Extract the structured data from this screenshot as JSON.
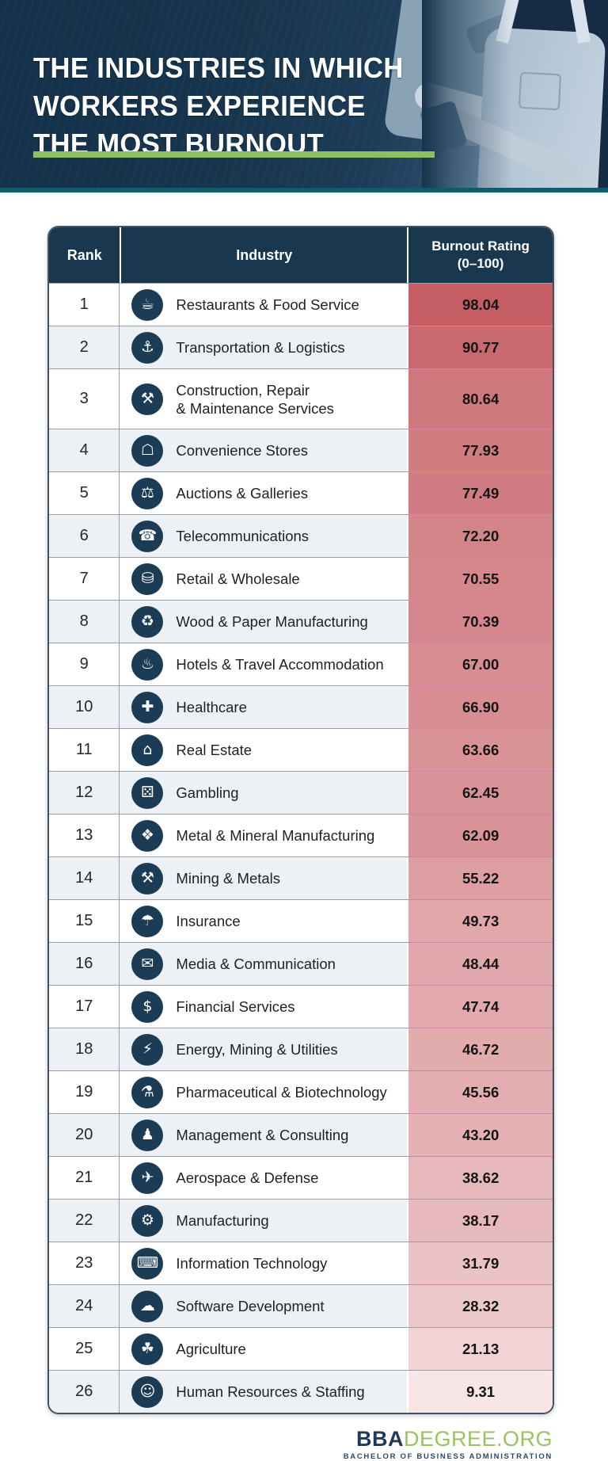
{
  "header": {
    "title_line1": "THE INDUSTRIES IN WHICH",
    "title_line2": "WORKERS EXPERIENCE",
    "title_line3": "THE MOST BURNOUT",
    "accent_bar_color": "#8dc05e",
    "banner_color": "#16334c",
    "strip_color": "#0e5b73",
    "photo_name": "worker-in-denim-overalls-using-equipment"
  },
  "table": {
    "header_bg": "#19384f",
    "columns": [
      "Rank",
      "Industry",
      "Burnout Rating\n(0–100)"
    ],
    "rows": [
      {
        "rank": "1",
        "industry": "Restaurants & Food Service",
        "icon": "food-service-cloche-icon",
        "glyph": "☕",
        "value": "98.04",
        "color": "#c55d64",
        "tall": false
      },
      {
        "rank": "2",
        "industry": "Transportation & Logistics",
        "icon": "delivery-truck-icon",
        "glyph": "⚓",
        "value": "90.77",
        "color": "#c9686f",
        "tall": false
      },
      {
        "rank": "3",
        "industry": "Construction, Repair\n& Maintenance Services",
        "icon": "construction-tools-icon",
        "glyph": "⚒",
        "value": "80.64",
        "color": "#cf787e",
        "tall": true
      },
      {
        "rank": "4",
        "industry": "Convenience Stores",
        "icon": "storefront-icon",
        "glyph": "☖",
        "value": "77.93",
        "color": "#d07c81",
        "tall": false
      },
      {
        "rank": "5",
        "industry": "Auctions & Galleries",
        "icon": "auction-bid-icon",
        "glyph": "⚖",
        "value": "77.49",
        "color": "#d17c82",
        "tall": false
      },
      {
        "rank": "6",
        "industry": "Telecommunications",
        "icon": "antenna-icon",
        "glyph": "☎",
        "value": "72.20",
        "color": "#d4858a",
        "tall": false
      },
      {
        "rank": "7",
        "industry": "Retail & Wholesale",
        "icon": "shopping-cart-icon",
        "glyph": "⛁",
        "value": "70.55",
        "color": "#d5878c",
        "tall": false
      },
      {
        "rank": "8",
        "industry": "Wood & Paper Manufacturing",
        "icon": "paper-rolls-icon",
        "glyph": "♻",
        "value": "70.39",
        "color": "#d5878d",
        "tall": false
      },
      {
        "rank": "9",
        "industry": "Hotels & Travel Accommodation",
        "icon": "service-bell-icon",
        "glyph": "♨",
        "value": "67.00",
        "color": "#d78d92",
        "tall": false
      },
      {
        "rank": "10",
        "industry": "Healthcare",
        "icon": "heart-care-icon",
        "glyph": "✚",
        "value": "66.90",
        "color": "#d78d92",
        "tall": false
      },
      {
        "rank": "11",
        "industry": "Real Estate",
        "icon": "house-hand-icon",
        "glyph": "⌂",
        "value": "63.66",
        "color": "#d99296",
        "tall": false
      },
      {
        "rank": "12",
        "industry": "Gambling",
        "icon": "dice-icon",
        "glyph": "⚄",
        "value": "62.45",
        "color": "#d99398",
        "tall": false
      },
      {
        "rank": "13",
        "industry": "Metal & Mineral Manufacturing",
        "icon": "crystal-icon",
        "glyph": "❖",
        "value": "62.09",
        "color": "#da9499",
        "tall": false
      },
      {
        "rank": "14",
        "industry": "Mining & Metals",
        "icon": "pickaxe-icon",
        "glyph": "⚒",
        "value": "55.22",
        "color": "#de9fa3",
        "tall": false
      },
      {
        "rank": "15",
        "industry": "Insurance",
        "icon": "insurance-shield-icon",
        "glyph": "☂",
        "value": "49.73",
        "color": "#e1a7ab",
        "tall": false
      },
      {
        "rank": "16",
        "industry": "Media & Communication",
        "icon": "megaphone-icon",
        "glyph": "✉",
        "value": "48.44",
        "color": "#e1a9ad",
        "tall": false
      },
      {
        "rank": "17",
        "industry": "Financial Services",
        "icon": "money-stack-icon",
        "glyph": "$",
        "value": "47.74",
        "color": "#e2aaae",
        "tall": false
      },
      {
        "rank": "18",
        "industry": "Energy, Mining & Utilities",
        "icon": "energy-bolt-icon",
        "glyph": "⚡",
        "value": "46.72",
        "color": "#e2acaf",
        "tall": false
      },
      {
        "rank": "19",
        "industry": "Pharmaceutical & Biotechnology",
        "icon": "pills-icon",
        "glyph": "⚗",
        "value": "45.56",
        "color": "#e3adb1",
        "tall": false
      },
      {
        "rank": "20",
        "industry": "Management & Consulting",
        "icon": "team-icon",
        "glyph": "♟",
        "value": "43.20",
        "color": "#e4b1b4",
        "tall": false
      },
      {
        "rank": "21",
        "industry": "Aerospace & Defense",
        "icon": "satellite-icon",
        "glyph": "✈",
        "value": "38.62",
        "color": "#e7b8bb",
        "tall": false
      },
      {
        "rank": "22",
        "industry": "Manufacturing",
        "icon": "gears-icon",
        "glyph": "⚙",
        "value": "38.17",
        "color": "#e7b9bc",
        "tall": false
      },
      {
        "rank": "23",
        "industry": "Information Technology",
        "icon": "computer-code-icon",
        "glyph": "⌨",
        "value": "31.79",
        "color": "#ebc2c5",
        "tall": false
      },
      {
        "rank": "24",
        "industry": "Software Development",
        "icon": "cloud-code-icon",
        "glyph": "☁",
        "value": "28.32",
        "color": "#edc8ca",
        "tall": false
      },
      {
        "rank": "25",
        "industry": "Agriculture",
        "icon": "seedling-hand-icon",
        "glyph": "☘",
        "value": "21.13",
        "color": "#f1d3d5",
        "tall": false
      },
      {
        "rank": "26",
        "industry": "Human Resources & Staffing",
        "icon": "person-search-icon",
        "glyph": "☺",
        "value": "9.31",
        "color": "#f8e5e6",
        "tall": false
      }
    ]
  },
  "footer": {
    "brand_bold": "BBA",
    "brand_rest": "DEGREE.ORG",
    "tagline": "BACHELOR OF BUSINESS ADMINISTRATION",
    "brand_bold_color": "#1e3a56",
    "brand_rest_color": "#9cc161",
    "tagline_color": "#2b4a6b"
  },
  "chart_data": {
    "type": "table",
    "title": "The Industries in Which Workers Experience the Most Burnout",
    "columns": [
      "Rank",
      "Industry",
      "Burnout Rating (0–100)"
    ],
    "categories": [
      "Restaurants & Food Service",
      "Transportation & Logistics",
      "Construction, Repair & Maintenance Services",
      "Convenience Stores",
      "Auctions & Galleries",
      "Telecommunications",
      "Retail & Wholesale",
      "Wood & Paper Manufacturing",
      "Hotels & Travel Accommodation",
      "Healthcare",
      "Real Estate",
      "Gambling",
      "Metal & Mineral Manufacturing",
      "Mining & Metals",
      "Insurance",
      "Media & Communication",
      "Financial Services",
      "Energy, Mining & Utilities",
      "Pharmaceutical & Biotechnology",
      "Management & Consulting",
      "Aerospace & Defense",
      "Manufacturing",
      "Information Technology",
      "Software Development",
      "Agriculture",
      "Human Resources & Staffing"
    ],
    "values": [
      98.04,
      90.77,
      80.64,
      77.93,
      77.49,
      72.2,
      70.55,
      70.39,
      67.0,
      66.9,
      63.66,
      62.45,
      62.09,
      55.22,
      49.73,
      48.44,
      47.74,
      46.72,
      45.56,
      43.2,
      38.62,
      38.17,
      31.79,
      28.32,
      21.13,
      9.31
    ],
    "value_range": [
      0,
      100
    ],
    "heatmap_high_color": "#c45a61",
    "heatmap_low_color": "#fdf3f4"
  }
}
